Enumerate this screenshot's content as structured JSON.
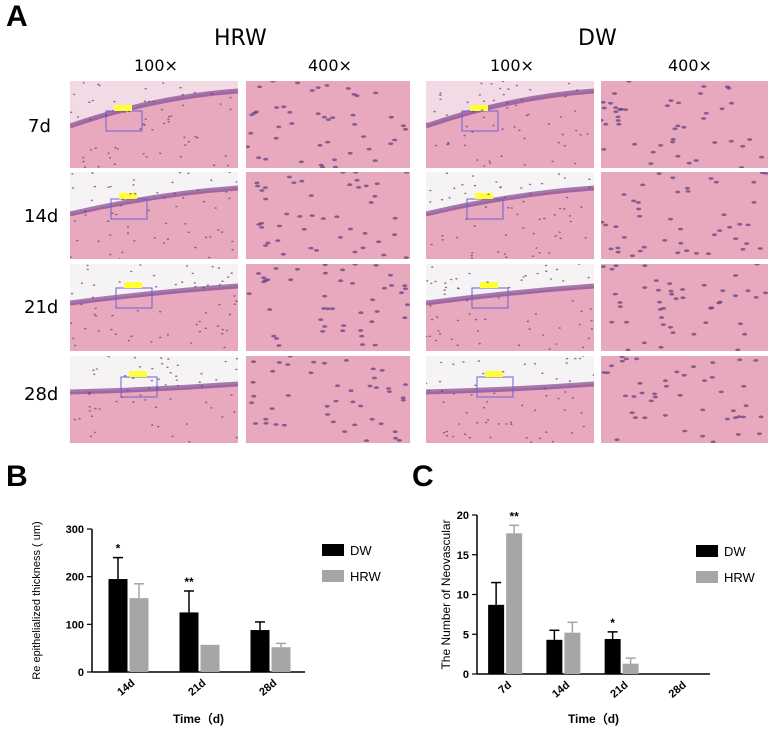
{
  "panel_a": {
    "letter": "A",
    "groups": [
      {
        "title": "HRW",
        "mags": [
          "100×",
          "400×"
        ]
      },
      {
        "title": "DW",
        "mags": [
          "100×",
          "400×"
        ]
      }
    ],
    "rows": [
      "7d",
      "14d",
      "21d",
      "28d"
    ]
  },
  "panel_b": {
    "letter": "B"
  },
  "panel_c": {
    "letter": "C"
  },
  "colors": {
    "dw": "#000000",
    "hrw": "#a6a6a6",
    "tissue_pink": "#e8a9bf",
    "tissue_purple": "#8a4f96",
    "box_blue": "#6f5fd0",
    "label_yellow": "#ffff33"
  },
  "chart_data": [
    {
      "type": "bar",
      "title": "",
      "xlabel": "Time（d)",
      "ylabel": "Re epithelialized thickness ( um)",
      "ylim": [
        0,
        300
      ],
      "yticks": [
        0,
        100,
        200,
        300
      ],
      "categories": [
        "14d",
        "21d",
        "28d"
      ],
      "legend_position": "right",
      "series": [
        {
          "name": "DW",
          "values": [
            195,
            125,
            88
          ],
          "errors": [
            45,
            45,
            17
          ]
        },
        {
          "name": "HRW",
          "values": [
            155,
            57,
            52
          ],
          "errors": [
            30,
            0,
            8
          ]
        }
      ],
      "annotations": [
        {
          "category": "14d",
          "series": "DW",
          "text": "*"
        },
        {
          "category": "21d",
          "series": "DW",
          "text": "**"
        }
      ]
    },
    {
      "type": "bar",
      "title": "",
      "xlabel": "Time（d)",
      "ylabel": "The Number of Neovascular",
      "ylim": [
        0,
        20
      ],
      "yticks": [
        0,
        5,
        10,
        15,
        20
      ],
      "categories": [
        "7d",
        "14d",
        "21d",
        "28d"
      ],
      "legend_position": "right",
      "series": [
        {
          "name": "DW",
          "values": [
            8.7,
            4.3,
            4.4,
            0
          ],
          "errors": [
            2.8,
            1.2,
            0.9,
            0
          ]
        },
        {
          "name": "HRW",
          "values": [
            17.7,
            5.2,
            1.3,
            0
          ],
          "errors": [
            1.0,
            1.3,
            0.7,
            0
          ]
        }
      ],
      "annotations": [
        {
          "category": "7d",
          "series": "HRW",
          "text": "**"
        },
        {
          "category": "21d",
          "series": "DW",
          "text": "*"
        }
      ]
    }
  ]
}
